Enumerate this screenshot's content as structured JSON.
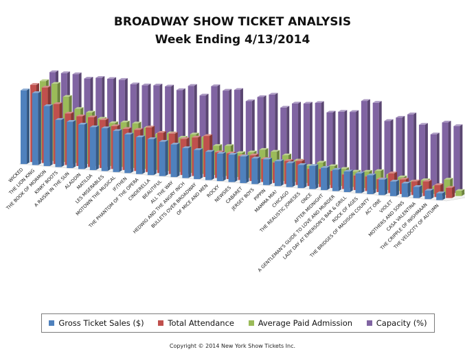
{
  "chart_data": {
    "type": "bar",
    "title": "BROADWAY SHOW TICKET ANALYSIS",
    "subtitle": "Week Ending  4/13/2014",
    "categories": [
      "WICKED",
      "THE LION KING",
      "THE BOOK OF MORMON",
      "KINKY BOOTS",
      "A RAISIN IN THE SUN",
      "ALADDIN",
      "MATILDA",
      "LES MISERABLES",
      "MOTOWN THE MUSICAL",
      "IF/THEN",
      "THE PHANTOM OF THE OPERA",
      "CINDERELLA",
      "BEAUTIFUL",
      "ALL THE WAY",
      "HEDWIG AND THE ANGRY INCH",
      "BULLETS OVER BROADWAY",
      "OF MICE AND MEN",
      "ROCKY",
      "NEWSIES",
      "CABARET",
      "JERSEY BOYS",
      "PIPPIN",
      "MAMMA MIA!",
      "CHICAGO",
      "THE REALISTIC JONESES",
      "ONCE",
      "AFTER MIDNIGHT",
      "A GENTLEMAN'S GUIDE TO LOVE AND MURDER",
      "LADY DAY AT EMERSON'S BAR & GRILL",
      "ROCK OF AGES",
      "THE BRIDGES OF MADISON COUNTY",
      "ACT ONE",
      "VIOLET",
      "MOTHERS AND SONS",
      "CASA VALENTINA",
      "THE CRIPPLE OF INISHMAAN",
      "THE VELOCITY OF AUTUMN"
    ],
    "series": [
      {
        "name": "Gross Ticket Sales ($)",
        "color": "#4f81bd",
        "values": [
          86,
          84,
          70,
          55,
          54,
          52,
          50,
          50,
          48,
          45,
          43,
          42,
          40,
          38,
          35,
          34,
          33,
          32,
          32,
          31,
          30,
          30,
          29,
          28,
          27,
          27,
          26,
          25,
          24,
          23,
          22,
          18,
          17,
          16,
          13,
          10,
          8
        ]
      },
      {
        "name": "Total Attendance",
        "color": "#c0504d",
        "values": [
          90,
          88,
          70,
          60,
          58,
          58,
          56,
          50,
          48,
          48,
          52,
          47,
          47,
          42,
          45,
          48,
          30,
          30,
          28,
          30,
          27,
          24,
          27,
          28,
          20,
          21,
          20,
          17,
          17,
          17,
          15,
          23,
          17,
          16,
          17,
          14,
          12
        ]
      },
      {
        "name": "Average Paid Admission",
        "color": "#9bbb59",
        "values": [
          92,
          90,
          76,
          63,
          60,
          54,
          50,
          52,
          52,
          48,
          42,
          44,
          40,
          45,
          43,
          34,
          35,
          28,
          30,
          34,
          33,
          30,
          25,
          20,
          25,
          22,
          20,
          18,
          19,
          21,
          18,
          16,
          12,
          15,
          9,
          18,
          6
        ]
      },
      {
        "name": "Capacity (%)",
        "color": "#8064a2",
        "values": [
          100,
          100,
          100,
          96,
          98,
          98,
          98,
          94,
          94,
          95,
          95,
          92,
          98,
          88,
          100,
          96,
          98,
          86,
          92,
          96,
          82,
          88,
          89,
          91,
          81,
          83,
          84,
          98,
          97,
          77,
          82,
          87,
          76,
          66,
          81,
          78,
          63
        ]
      }
    ],
    "legend_position": "bottom",
    "gridlines": false
  },
  "copyright": "Copyright © 2014 New York Show Tickets Inc."
}
